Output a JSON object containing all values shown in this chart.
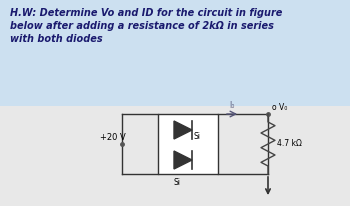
{
  "bg_color": "#cce0f0",
  "fig_bg": "#d8d8d8",
  "circuit_bg": "#f0f0f0",
  "text_color": "#1a1a6e",
  "wire_color": "#333333",
  "circuit_box_color": "#333333",
  "resistor_color": "#444444",
  "title_line1": "H.W: Determine Vo and ID for the circuit in figure",
  "title_line2": "below after adding a resistance of 2kΩ in series",
  "title_line3": "with both diodes",
  "voltage_label": "+20 V",
  "diode1_label": "Si",
  "diode2_label": "Si",
  "resistor_label": "4.7 kΩ",
  "current_label": "I₀",
  "vo_label": "o V₀"
}
